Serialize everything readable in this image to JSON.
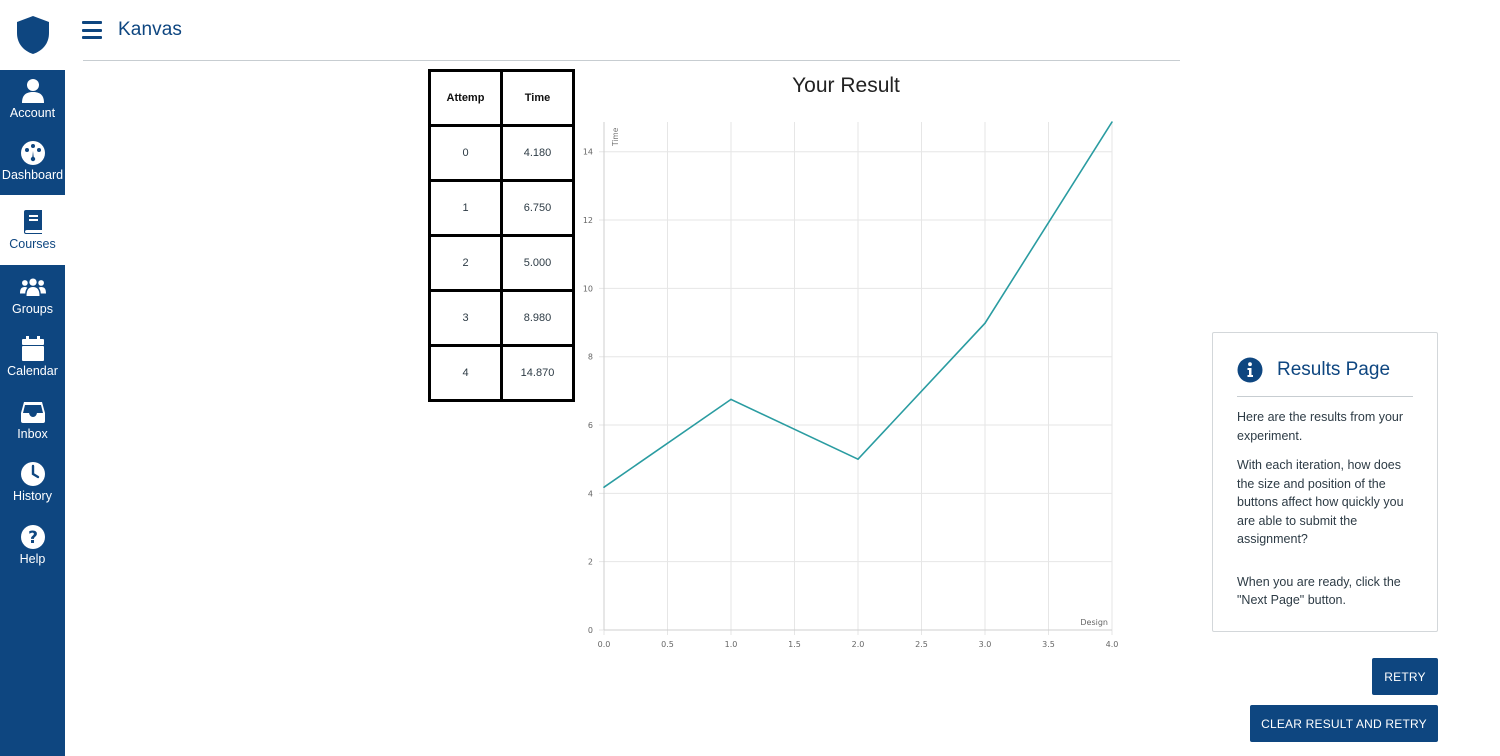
{
  "app": {
    "title": "Kanvas"
  },
  "sidebar": {
    "items": [
      {
        "label": "Account",
        "icon": "account-icon"
      },
      {
        "label": "Dashboard",
        "icon": "dashboard-icon"
      },
      {
        "label": "Courses",
        "icon": "courses-icon",
        "active": true
      },
      {
        "label": "Groups",
        "icon": "groups-icon"
      },
      {
        "label": "Calendar",
        "icon": "calendar-icon"
      },
      {
        "label": "Inbox",
        "icon": "inbox-icon"
      },
      {
        "label": "History",
        "icon": "history-icon"
      },
      {
        "label": "Help",
        "icon": "help-icon"
      }
    ]
  },
  "table": {
    "headers": [
      "Attemp",
      "Time"
    ],
    "rows": [
      [
        "0",
        "4.180"
      ],
      [
        "1",
        "6.750"
      ],
      [
        "2",
        "5.000"
      ],
      [
        "3",
        "8.980"
      ],
      [
        "4",
        "14.870"
      ]
    ]
  },
  "chart_data": {
    "type": "line",
    "title": "Your Result",
    "xlabel": "Design",
    "ylabel": "Time",
    "x": [
      0,
      1,
      2,
      3,
      4
    ],
    "series": [
      {
        "values": [
          4.18,
          6.75,
          5.0,
          8.98,
          14.87
        ],
        "color": "#2a9ca1"
      }
    ],
    "xlim": [
      0,
      4
    ],
    "ylim": [
      0,
      14.87
    ],
    "xticks": [
      "0.0",
      "0.5",
      "1.0",
      "1.5",
      "2.0",
      "2.5",
      "3.0",
      "3.5",
      "4.0"
    ],
    "yticks": [
      "0",
      "2",
      "4",
      "6",
      "8",
      "10",
      "12",
      "14"
    ],
    "grid": true
  },
  "panel": {
    "title": "Results Page",
    "p1": "Here are the results from your experiment.",
    "p2": "With each iteration, how does the size and position of the buttons affect how quickly you are able to submit the assignment?",
    "p3": "When you are ready, click the \"Next Page\" button."
  },
  "buttons": {
    "retry": "RETRY",
    "clear": "CLEAR RESULT AND RETRY"
  },
  "colors": {
    "brand": "#0e4680",
    "line": "#2a9ca1"
  }
}
